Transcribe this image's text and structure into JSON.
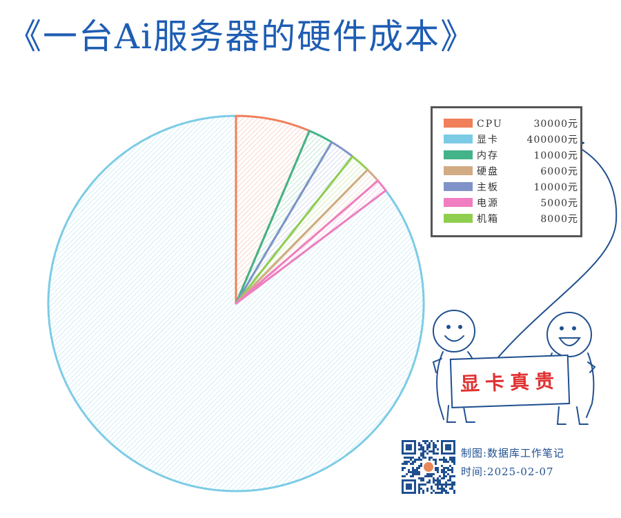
{
  "title": "《一台Ai服务器的硬件成本》",
  "chart_data": {
    "type": "pie",
    "title": "《一台Ai服务器的硬件成本》",
    "slices": [
      {
        "label": "显卡",
        "value": 400000,
        "display": "400000元",
        "color": "#7ccbe6"
      },
      {
        "label": "CPU",
        "value": 30000,
        "display": "30000元",
        "color": "#f07f5a"
      },
      {
        "label": "内存",
        "value": 10000,
        "display": "10000元",
        "color": "#43b389"
      },
      {
        "label": "主板",
        "value": 10000,
        "display": "10000元",
        "color": "#7f93c9"
      },
      {
        "label": "机箱",
        "value": 8000,
        "display": "8000元",
        "color": "#8fce4f"
      },
      {
        "label": "硬盘",
        "value": 6000,
        "display": "6000元",
        "color": "#d1ab84"
      },
      {
        "label": "电源",
        "value": 5000,
        "display": "5000元",
        "color": "#f07ec0"
      }
    ],
    "legend_placement": "top-right",
    "legend": [
      {
        "label": "CPU",
        "value": "30000元",
        "color": "#f07f5a"
      },
      {
        "label": "显卡",
        "value": "400000元",
        "color": "#7ccbe6"
      },
      {
        "label": "内存",
        "value": "10000元",
        "color": "#43b389"
      },
      {
        "label": "硬盘",
        "value": "6000元",
        "color": "#d1ab84"
      },
      {
        "label": "主板",
        "value": "10000元",
        "color": "#7f93c9"
      },
      {
        "label": "电源",
        "value": "5000元",
        "color": "#f07ec0"
      },
      {
        "label": "机箱",
        "value": "8000元",
        "color": "#8fce4f"
      }
    ]
  },
  "banner": {
    "text": "显卡真贵"
  },
  "footer": {
    "source": "制图:数据库工作笔记",
    "date": "时间:2025-02-07"
  },
  "colors": {
    "title": "#1e5db3",
    "outline": "#1f4f8f",
    "banner_text": "#e03131"
  }
}
